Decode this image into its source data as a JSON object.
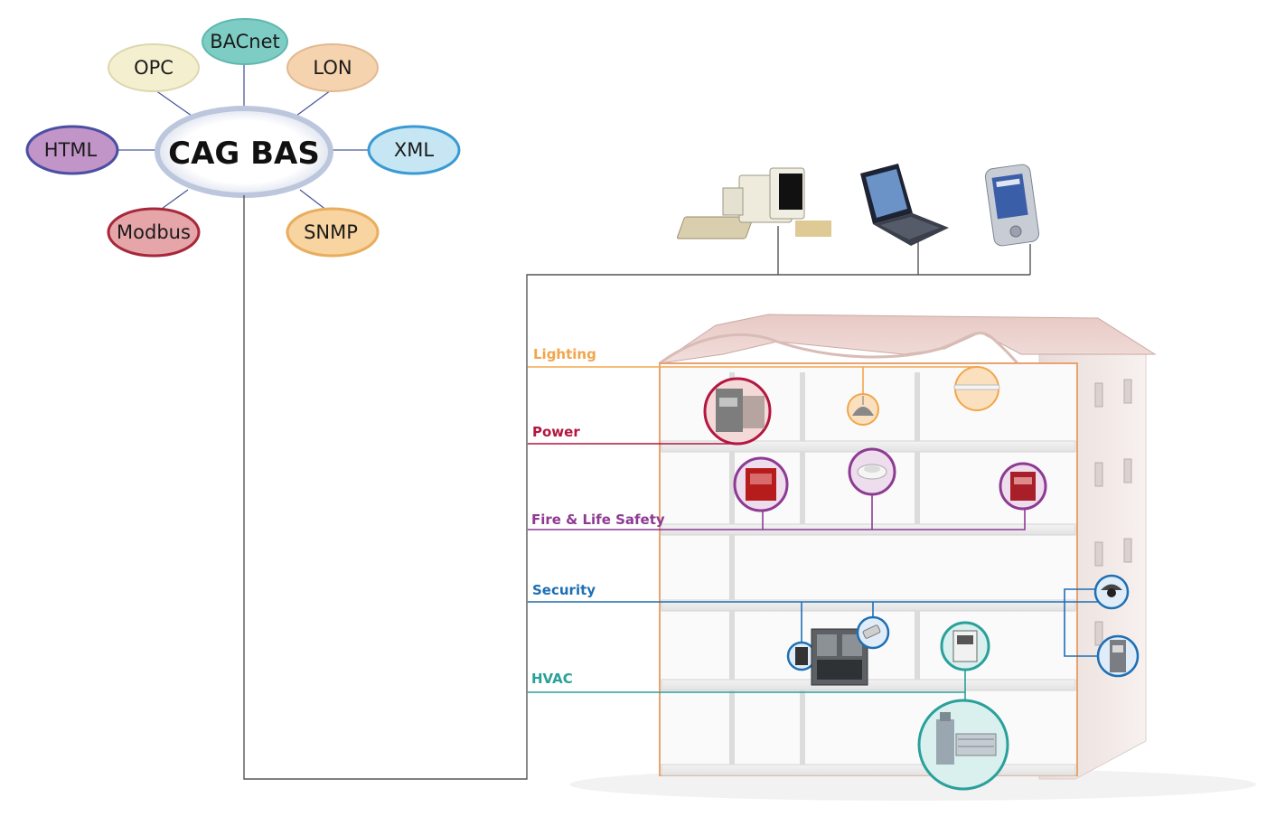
{
  "hub": {
    "label": "CAG BAS"
  },
  "protocols": [
    {
      "id": "bacnet",
      "label": "BACnet",
      "color": "#7ecdc4"
    },
    {
      "id": "opc",
      "label": "OPC",
      "color": "#f4f0cf"
    },
    {
      "id": "lon",
      "label": "LON",
      "color": "#f5d3ae"
    },
    {
      "id": "html",
      "label": "HTML",
      "color": "#c295c9"
    },
    {
      "id": "xml",
      "label": "XML",
      "color": "#c6e6f4"
    },
    {
      "id": "modbus",
      "label": "Modbus",
      "color": "#e6a6a9"
    },
    {
      "id": "snmp",
      "label": "SNMP",
      "color": "#f8d4a0"
    }
  ],
  "clients": [
    {
      "id": "desktop",
      "icon": "desktop-computer-icon"
    },
    {
      "id": "laptop",
      "icon": "laptop-icon"
    },
    {
      "id": "pda",
      "icon": "handheld-pda-icon"
    }
  ],
  "systems": [
    {
      "id": "lighting",
      "label": "Lighting",
      "color": "#f2a54a"
    },
    {
      "id": "power",
      "label": "Power",
      "color": "#b3173f"
    },
    {
      "id": "fire",
      "label": "Fire & Life Safety",
      "color": "#8e3a93"
    },
    {
      "id": "security",
      "label": "Security",
      "color": "#1f6fb4"
    },
    {
      "id": "hvac",
      "label": "HVAC",
      "color": "#2aa09a"
    }
  ]
}
